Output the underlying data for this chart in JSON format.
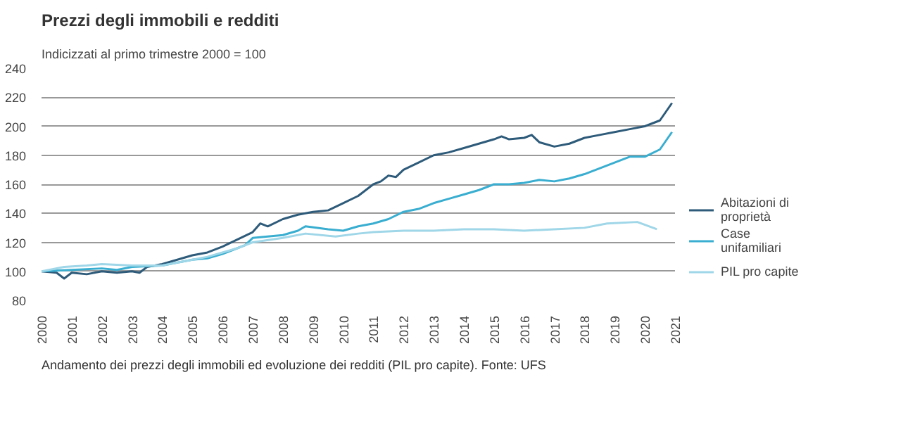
{
  "chart_data": {
    "type": "line",
    "title": "Prezzi degli immobili e redditi",
    "subtitle": "Indicizzati al primo trimestre 2000 = 100",
    "annotations": [
      "Andamento dei prezzi degli immobili ed evoluzione dei redditi (PIL pro capite). Fonte: UFS"
    ],
    "series": [
      {
        "name": "Abitazioni di proprietà",
        "color": "#2e5b7a",
        "x": [
          2000,
          2000.5,
          2000.75,
          2001,
          2001.5,
          2002,
          2002.5,
          2003,
          2003.25,
          2003.5,
          2004,
          2004.5,
          2005,
          2005.5,
          2006,
          2006.5,
          2007,
          2007.25,
          2007.5,
          2008,
          2008.5,
          2009,
          2009.5,
          2010,
          2010.5,
          2011,
          2011.25,
          2011.5,
          2011.75,
          2012,
          2012.5,
          2013,
          2013.5,
          2014,
          2014.5,
          2015,
          2015.25,
          2015.5,
          2016,
          2016.25,
          2016.5,
          2017,
          2017.5,
          2018,
          2018.5,
          2019,
          2019.5,
          2020,
          2020.5,
          2020.9
        ],
        "values": [
          100,
          99,
          95,
          99,
          98,
          100,
          99,
          100,
          99,
          103,
          105,
          108,
          111,
          113,
          117,
          122,
          127,
          133,
          131,
          136,
          139,
          141,
          142,
          147,
          152,
          160,
          162,
          166,
          165,
          170,
          175,
          180,
          182,
          185,
          188,
          191,
          193,
          191,
          192,
          194,
          189,
          186,
          188,
          192,
          194,
          196,
          198,
          200,
          204,
          216
        ]
      },
      {
        "name": "Case unifamiliari",
        "color": "#3aaed0",
        "x": [
          2000,
          2001,
          2002,
          2002.5,
          2003,
          2004,
          2005,
          2005.5,
          2006,
          2006.5,
          2006.75,
          2007,
          2007.5,
          2008,
          2008.5,
          2008.75,
          2009.5,
          2010,
          2010.5,
          2011,
          2011.5,
          2012,
          2012.5,
          2013,
          2013.5,
          2014,
          2014.5,
          2015,
          2015.5,
          2016,
          2016.5,
          2017,
          2017.5,
          2018,
          2018.5,
          2019,
          2019.5,
          2020,
          2020.5,
          2020.9
        ],
        "values": [
          100,
          101,
          102,
          101,
          103,
          104,
          108,
          109,
          112,
          116,
          118,
          123,
          124,
          125,
          128,
          131,
          129,
          128,
          131,
          133,
          136,
          141,
          143,
          147,
          150,
          153,
          156,
          160,
          160,
          161,
          163,
          162,
          164,
          167,
          171,
          175,
          179,
          179,
          184,
          196
        ]
      },
      {
        "name": "PIL pro capite",
        "color": "#9fd6e8",
        "x": [
          2000,
          2000.75,
          2001.5,
          2002,
          2003,
          2004,
          2004.5,
          2005,
          2005.5,
          2006,
          2006.5,
          2007,
          2008,
          2008.75,
          2009.75,
          2010.5,
          2011,
          2012,
          2013,
          2014,
          2015,
          2016,
          2017,
          2018,
          2018.75,
          2019.75,
          2020.4
        ],
        "values": [
          100,
          103,
          104,
          105,
          104,
          104,
          106,
          108,
          110,
          113,
          116,
          120,
          123,
          126,
          124,
          126,
          127,
          128,
          128,
          129,
          129,
          128,
          129,
          130,
          133,
          134,
          129
        ]
      }
    ],
    "xlim": [
      2000,
      2021
    ],
    "xticks": [
      2000,
      2001,
      2002,
      2003,
      2004,
      2005,
      2006,
      2007,
      2008,
      2009,
      2010,
      2011,
      2012,
      2013,
      2014,
      2015,
      2016,
      2017,
      2018,
      2019,
      2020,
      2021
    ],
    "ylim": [
      80,
      240
    ],
    "yticks": [
      80,
      100,
      120,
      140,
      160,
      180,
      200,
      220,
      240
    ],
    "grid": "y",
    "legend": "bottom right",
    "line_style": "solid",
    "marker": "none"
  }
}
